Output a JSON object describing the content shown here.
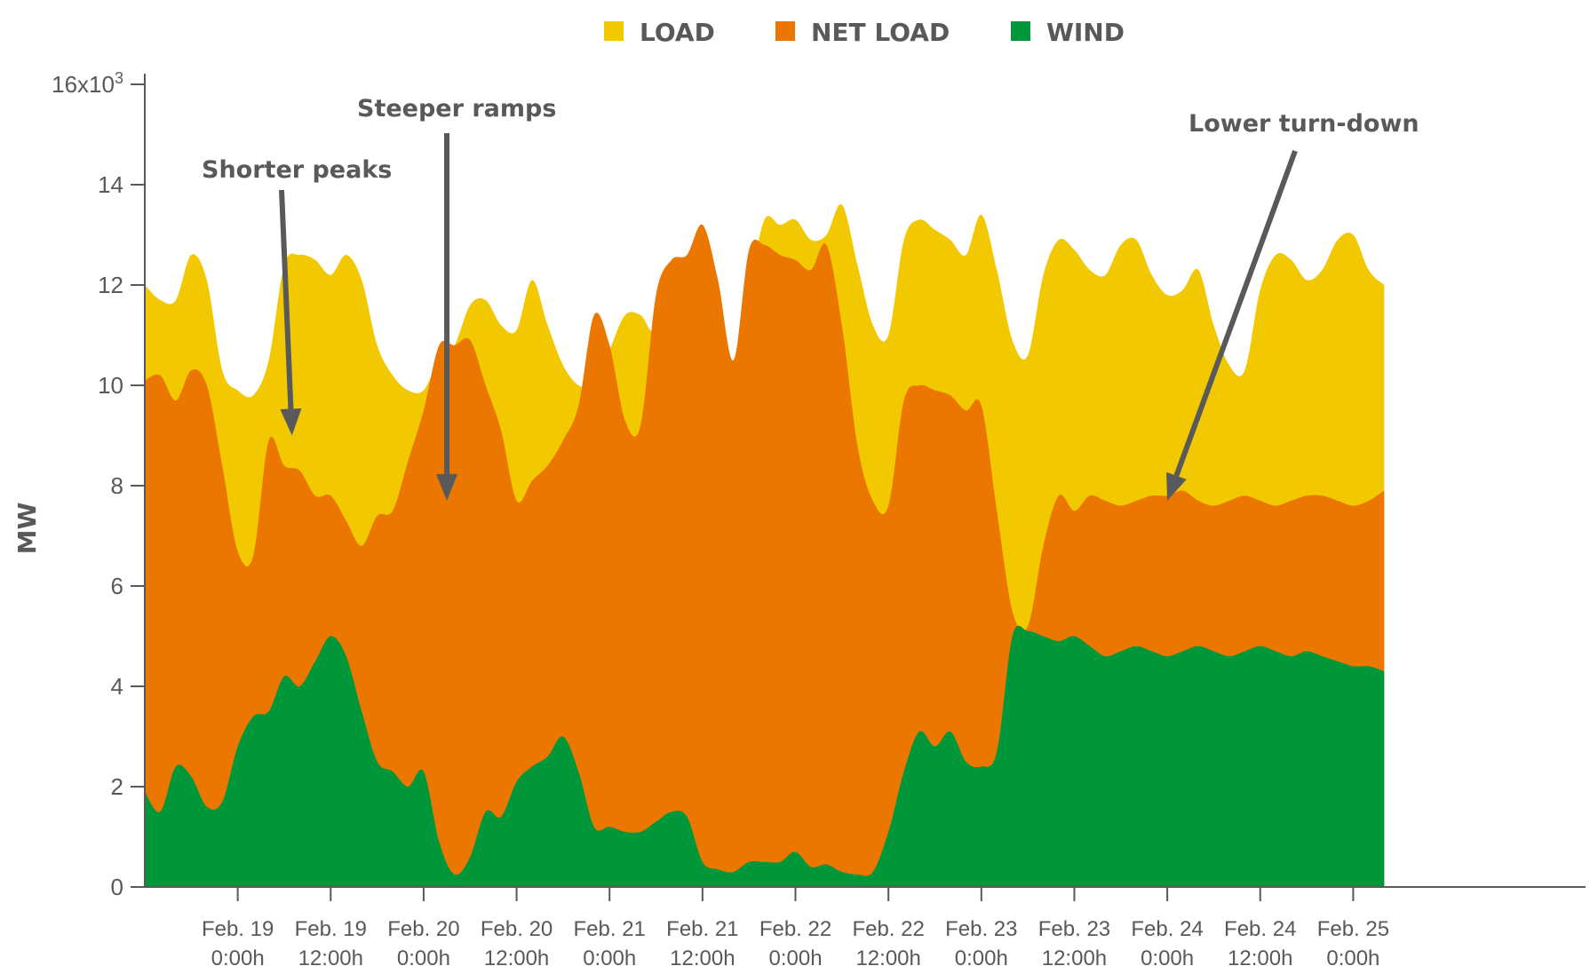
{
  "colors": {
    "load": "#f2c800",
    "net_load": "#ec7700",
    "wind": "#00973a",
    "text": "#58595b"
  },
  "chart_data": {
    "type": "area",
    "ylabel": "MW",
    "ylim": [
      0,
      16000
    ],
    "y_ticks": [
      {
        "value": 0,
        "label": "0"
      },
      {
        "value": 2000,
        "label": "2"
      },
      {
        "value": 4000,
        "label": "4"
      },
      {
        "value": 6000,
        "label": "6"
      },
      {
        "value": 8000,
        "label": "8"
      },
      {
        "value": 10000,
        "label": "10"
      },
      {
        "value": 12000,
        "label": "12"
      },
      {
        "value": 14000,
        "label": "14"
      }
    ],
    "y_top_label": {
      "value": 16000,
      "base": "16x10",
      "exp": "3"
    },
    "x_unit": "hours",
    "xlim": [
      -12,
      174
    ],
    "x_ticks": [
      {
        "hour": 0,
        "line1": "Feb. 19",
        "line2": "0:00h"
      },
      {
        "hour": 12,
        "line1": "Feb. 19",
        "line2": "12:00h"
      },
      {
        "hour": 24,
        "line1": "Feb. 20",
        "line2": "0:00h"
      },
      {
        "hour": 36,
        "line1": "Feb. 20",
        "line2": "12:00h"
      },
      {
        "hour": 48,
        "line1": "Feb. 21",
        "line2": "0:00h"
      },
      {
        "hour": 60,
        "line1": "Feb. 21",
        "line2": "12:00h"
      },
      {
        "hour": 72,
        "line1": "Feb. 22",
        "line2": "0:00h"
      },
      {
        "hour": 84,
        "line1": "Feb. 22",
        "line2": "12:00h"
      },
      {
        "hour": 96,
        "line1": "Feb. 23",
        "line2": "0:00h"
      },
      {
        "hour": 108,
        "line1": "Feb. 23",
        "line2": "12:00h"
      },
      {
        "hour": 120,
        "line1": "Feb. 24",
        "line2": "0:00h"
      },
      {
        "hour": 132,
        "line1": "Feb. 24",
        "line2": "12:00h"
      },
      {
        "hour": 144,
        "line1": "Feb. 25",
        "line2": "0:00h"
      }
    ],
    "legend": {
      "position": "top-center",
      "entries": [
        {
          "name": "LOAD",
          "color": "#f2c800"
        },
        {
          "name": "NET LOAD",
          "color": "#ec7700"
        },
        {
          "name": "WIND",
          "color": "#00973a"
        }
      ]
    },
    "series": [
      {
        "name": "LOAD",
        "points": [
          [
            -12,
            12000
          ],
          [
            -10,
            11700
          ],
          [
            -8,
            11700
          ],
          [
            -6,
            12600
          ],
          [
            -4,
            12100
          ],
          [
            -2,
            10300
          ],
          [
            0,
            9900
          ],
          [
            2,
            9800
          ],
          [
            4,
            10500
          ],
          [
            6,
            12400
          ],
          [
            8,
            12600
          ],
          [
            10,
            12500
          ],
          [
            12,
            12200
          ],
          [
            14,
            12600
          ],
          [
            16,
            12100
          ],
          [
            18,
            10800
          ],
          [
            20,
            10200
          ],
          [
            22,
            9900
          ],
          [
            24,
            9900
          ],
          [
            26,
            10500
          ],
          [
            28,
            10800
          ],
          [
            30,
            11600
          ],
          [
            32,
            11700
          ],
          [
            34,
            11200
          ],
          [
            36,
            11100
          ],
          [
            38,
            12100
          ],
          [
            40,
            11200
          ],
          [
            42,
            10400
          ],
          [
            44,
            10000
          ],
          [
            46,
            10000
          ],
          [
            48,
            10700
          ],
          [
            50,
            11400
          ],
          [
            52,
            11400
          ],
          [
            54,
            11100
          ],
          [
            56,
            12500
          ],
          [
            58,
            11900
          ],
          [
            60,
            10700
          ],
          [
            62,
            10500
          ],
          [
            64,
            10500
          ],
          [
            66,
            11900
          ],
          [
            68,
            13300
          ],
          [
            70,
            13200
          ],
          [
            72,
            13300
          ],
          [
            74,
            12900
          ],
          [
            76,
            13000
          ],
          [
            78,
            13600
          ],
          [
            80,
            12400
          ],
          [
            82,
            11200
          ],
          [
            84,
            11000
          ],
          [
            86,
            12900
          ],
          [
            88,
            13300
          ],
          [
            90,
            13100
          ],
          [
            92,
            12900
          ],
          [
            94,
            12600
          ],
          [
            96,
            13400
          ],
          [
            98,
            12300
          ],
          [
            100,
            10900
          ],
          [
            102,
            10600
          ],
          [
            104,
            12200
          ],
          [
            106,
            12900
          ],
          [
            108,
            12700
          ],
          [
            110,
            12300
          ],
          [
            112,
            12200
          ],
          [
            114,
            12800
          ],
          [
            116,
            12900
          ],
          [
            118,
            12200
          ],
          [
            120,
            11800
          ],
          [
            122,
            11900
          ],
          [
            124,
            12300
          ],
          [
            126,
            11200
          ],
          [
            128,
            10400
          ],
          [
            130,
            10300
          ],
          [
            132,
            11900
          ],
          [
            134,
            12600
          ],
          [
            136,
            12500
          ],
          [
            138,
            12100
          ],
          [
            140,
            12300
          ],
          [
            142,
            12900
          ],
          [
            144,
            13000
          ],
          [
            146,
            12300
          ],
          [
            148,
            12000
          ]
        ]
      },
      {
        "name": "NET LOAD",
        "points": [
          [
            -12,
            10100
          ],
          [
            -10,
            10200
          ],
          [
            -8,
            9700
          ],
          [
            -6,
            10300
          ],
          [
            -4,
            10000
          ],
          [
            -2,
            8400
          ],
          [
            0,
            6700
          ],
          [
            2,
            6600
          ],
          [
            4,
            8900
          ],
          [
            6,
            8400
          ],
          [
            8,
            8300
          ],
          [
            10,
            7800
          ],
          [
            12,
            7800
          ],
          [
            14,
            7300
          ],
          [
            16,
            6800
          ],
          [
            18,
            7400
          ],
          [
            20,
            7500
          ],
          [
            22,
            8500
          ],
          [
            24,
            9500
          ],
          [
            26,
            10800
          ],
          [
            28,
            10800
          ],
          [
            30,
            10900
          ],
          [
            32,
            10000
          ],
          [
            34,
            9100
          ],
          [
            36,
            7700
          ],
          [
            38,
            8100
          ],
          [
            40,
            8400
          ],
          [
            42,
            8900
          ],
          [
            44,
            9600
          ],
          [
            46,
            11400
          ],
          [
            48,
            10800
          ],
          [
            50,
            9300
          ],
          [
            52,
            9200
          ],
          [
            54,
            11800
          ],
          [
            56,
            12500
          ],
          [
            58,
            12600
          ],
          [
            60,
            13200
          ],
          [
            62,
            12100
          ],
          [
            64,
            10500
          ],
          [
            66,
            12700
          ],
          [
            68,
            12800
          ],
          [
            70,
            12600
          ],
          [
            72,
            12500
          ],
          [
            74,
            12300
          ],
          [
            76,
            12800
          ],
          [
            78,
            11200
          ],
          [
            80,
            8800
          ],
          [
            82,
            7700
          ],
          [
            84,
            7600
          ],
          [
            86,
            9700
          ],
          [
            88,
            10000
          ],
          [
            90,
            9900
          ],
          [
            92,
            9800
          ],
          [
            94,
            9500
          ],
          [
            96,
            9600
          ],
          [
            98,
            7500
          ],
          [
            100,
            5500
          ],
          [
            102,
            5200
          ],
          [
            104,
            6800
          ],
          [
            106,
            7800
          ],
          [
            108,
            7500
          ],
          [
            110,
            7800
          ],
          [
            112,
            7700
          ],
          [
            114,
            7600
          ],
          [
            116,
            7700
          ],
          [
            118,
            7800
          ],
          [
            120,
            7800
          ],
          [
            122,
            7900
          ],
          [
            124,
            7700
          ],
          [
            126,
            7600
          ],
          [
            128,
            7700
          ],
          [
            130,
            7800
          ],
          [
            132,
            7700
          ],
          [
            134,
            7600
          ],
          [
            136,
            7700
          ],
          [
            138,
            7800
          ],
          [
            140,
            7800
          ],
          [
            142,
            7700
          ],
          [
            144,
            7600
          ],
          [
            146,
            7700
          ],
          [
            148,
            7900
          ]
        ]
      },
      {
        "name": "WIND",
        "points": [
          [
            -12,
            1900
          ],
          [
            -10,
            1500
          ],
          [
            -8,
            2400
          ],
          [
            -6,
            2200
          ],
          [
            -4,
            1600
          ],
          [
            -2,
            1700
          ],
          [
            0,
            2800
          ],
          [
            2,
            3400
          ],
          [
            4,
            3500
          ],
          [
            6,
            4200
          ],
          [
            8,
            4000
          ],
          [
            10,
            4500
          ],
          [
            12,
            5000
          ],
          [
            14,
            4600
          ],
          [
            16,
            3500
          ],
          [
            18,
            2500
          ],
          [
            20,
            2300
          ],
          [
            22,
            2000
          ],
          [
            24,
            2300
          ],
          [
            26,
            900
          ],
          [
            28,
            250
          ],
          [
            30,
            600
          ],
          [
            32,
            1500
          ],
          [
            34,
            1400
          ],
          [
            36,
            2100
          ],
          [
            38,
            2400
          ],
          [
            40,
            2600
          ],
          [
            42,
            3000
          ],
          [
            44,
            2300
          ],
          [
            46,
            1200
          ],
          [
            48,
            1200
          ],
          [
            50,
            1100
          ],
          [
            52,
            1100
          ],
          [
            54,
            1300
          ],
          [
            56,
            1500
          ],
          [
            58,
            1400
          ],
          [
            60,
            500
          ],
          [
            62,
            350
          ],
          [
            64,
            300
          ],
          [
            66,
            500
          ],
          [
            68,
            500
          ],
          [
            70,
            500
          ],
          [
            72,
            700
          ],
          [
            74,
            400
          ],
          [
            76,
            450
          ],
          [
            78,
            300
          ],
          [
            80,
            250
          ],
          [
            82,
            300
          ],
          [
            84,
            1100
          ],
          [
            86,
            2300
          ],
          [
            88,
            3100
          ],
          [
            90,
            2800
          ],
          [
            92,
            3100
          ],
          [
            94,
            2500
          ],
          [
            96,
            2400
          ],
          [
            98,
            2700
          ],
          [
            100,
            5000
          ],
          [
            102,
            5100
          ],
          [
            104,
            5000
          ],
          [
            106,
            4900
          ],
          [
            108,
            5000
          ],
          [
            110,
            4800
          ],
          [
            112,
            4600
          ],
          [
            114,
            4700
          ],
          [
            116,
            4800
          ],
          [
            118,
            4700
          ],
          [
            120,
            4600
          ],
          [
            122,
            4700
          ],
          [
            124,
            4800
          ],
          [
            126,
            4700
          ],
          [
            128,
            4600
          ],
          [
            130,
            4700
          ],
          [
            132,
            4800
          ],
          [
            134,
            4700
          ],
          [
            136,
            4600
          ],
          [
            138,
            4700
          ],
          [
            140,
            4600
          ],
          [
            142,
            4500
          ],
          [
            144,
            4400
          ],
          [
            146,
            4400
          ],
          [
            148,
            4300
          ]
        ]
      }
    ],
    "annotations": [
      {
        "text": "Shorter peaks",
        "target_hour": 7,
        "target_value": 9000
      },
      {
        "text": "Steeper ramps",
        "target_hour": 27,
        "target_value": 7700
      },
      {
        "text": "Lower turn-down",
        "target_hour": 120,
        "target_value": 7700
      }
    ]
  }
}
